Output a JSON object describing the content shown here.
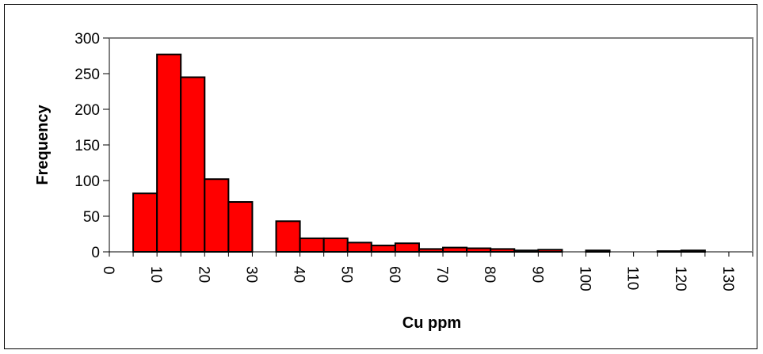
{
  "chart_data": {
    "type": "bar",
    "title": "",
    "xlabel": "Cu ppm",
    "ylabel": "Frequency",
    "xlim": [
      0,
      135
    ],
    "ylim": [
      0,
      300
    ],
    "bin_width": 5,
    "x_ticks": [
      0,
      10,
      20,
      30,
      40,
      50,
      60,
      70,
      80,
      90,
      100,
      110,
      120,
      130
    ],
    "y_ticks": [
      0,
      50,
      100,
      150,
      200,
      250,
      300
    ],
    "grid": false,
    "legend": "none",
    "bar_color": "#ff0000",
    "bins": [
      {
        "x_start": 0,
        "x_end": 5,
        "value": 0
      },
      {
        "x_start": 5,
        "x_end": 10,
        "value": 82
      },
      {
        "x_start": 10,
        "x_end": 15,
        "value": 277
      },
      {
        "x_start": 15,
        "x_end": 20,
        "value": 245
      },
      {
        "x_start": 20,
        "x_end": 25,
        "value": 102
      },
      {
        "x_start": 25,
        "x_end": 30,
        "value": 70
      },
      {
        "x_start": 30,
        "x_end": 35,
        "value": 0
      },
      {
        "x_start": 35,
        "x_end": 40,
        "value": 43
      },
      {
        "x_start": 40,
        "x_end": 45,
        "value": 19
      },
      {
        "x_start": 45,
        "x_end": 50,
        "value": 19
      },
      {
        "x_start": 50,
        "x_end": 55,
        "value": 13
      },
      {
        "x_start": 55,
        "x_end": 60,
        "value": 9
      },
      {
        "x_start": 60,
        "x_end": 65,
        "value": 12
      },
      {
        "x_start": 65,
        "x_end": 70,
        "value": 4
      },
      {
        "x_start": 70,
        "x_end": 75,
        "value": 6
      },
      {
        "x_start": 75,
        "x_end": 80,
        "value": 5
      },
      {
        "x_start": 80,
        "x_end": 85,
        "value": 4
      },
      {
        "x_start": 85,
        "x_end": 90,
        "value": 2
      },
      {
        "x_start": 90,
        "x_end": 95,
        "value": 3
      },
      {
        "x_start": 95,
        "x_end": 100,
        "value": 0
      },
      {
        "x_start": 100,
        "x_end": 105,
        "value": 2
      },
      {
        "x_start": 105,
        "x_end": 110,
        "value": 0
      },
      {
        "x_start": 110,
        "x_end": 115,
        "value": 0
      },
      {
        "x_start": 115,
        "x_end": 120,
        "value": 1
      },
      {
        "x_start": 120,
        "x_end": 125,
        "value": 2
      },
      {
        "x_start": 125,
        "x_end": 130,
        "value": 0
      },
      {
        "x_start": 130,
        "x_end": 135,
        "value": 0
      }
    ]
  }
}
